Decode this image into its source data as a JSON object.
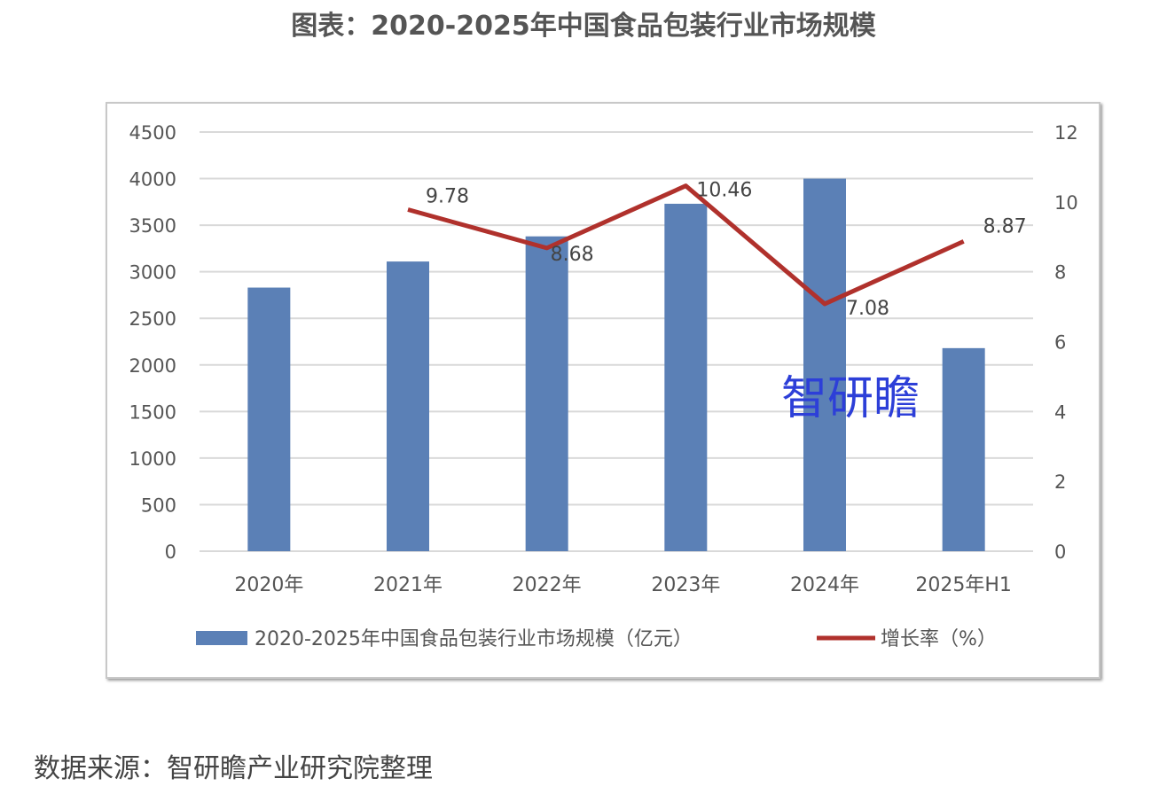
{
  "title": "图表：2020-2025年中国食品包装行业市场规模",
  "source": "数据来源：智研瞻产业研究院整理",
  "watermark": "智研瞻",
  "chart_data": {
    "type": "bar",
    "categories": [
      "2020年",
      "2021年",
      "2022年",
      "2023年",
      "2024年",
      "2025年H1"
    ],
    "series": [
      {
        "name": "2020-2025年中国食品包装行业市场规模（亿元）",
        "kind": "bar",
        "axis": "left",
        "color": "#5b80b6",
        "values": [
          2830,
          3110,
          3380,
          3730,
          4000,
          2180
        ]
      },
      {
        "name": "增长率（%）",
        "kind": "line",
        "axis": "right",
        "color": "#b0312c",
        "values": [
          null,
          9.78,
          8.68,
          10.46,
          7.08,
          8.87
        ],
        "labels": [
          "",
          "9.78",
          "8.68",
          "10.46",
          "7.08",
          "8.87"
        ]
      }
    ],
    "y_left": {
      "range": [
        0,
        4500
      ],
      "ticks": [
        "0",
        "500",
        "1000",
        "1500",
        "2000",
        "2500",
        "3000",
        "3500",
        "4000",
        "4500"
      ]
    },
    "y_right": {
      "range": [
        0,
        12
      ],
      "ticks": [
        "0",
        "2",
        "4",
        "6",
        "8",
        "10",
        "12"
      ]
    },
    "grid": true,
    "legend_position": "bottom"
  }
}
